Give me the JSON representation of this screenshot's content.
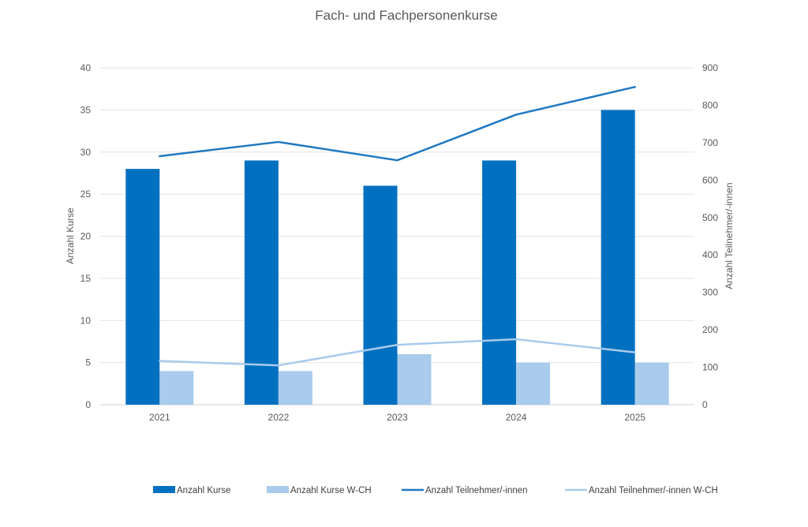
{
  "chart_data": {
    "type": "bar",
    "title": "Fach- und Fachpersonenkurse",
    "categories": [
      "2021",
      "2022",
      "2023",
      "2024",
      "2025"
    ],
    "y_left": {
      "label": "Anzahl Kurse",
      "min": 0,
      "max": 40,
      "ticks": [
        "0",
        "5",
        "10",
        "15",
        "20",
        "25",
        "30",
        "35",
        "40"
      ]
    },
    "y_right": {
      "label": "Anzahl Teilnehmer/-innen",
      "min": 0,
      "max": 900,
      "ticks": [
        "0",
        "100",
        "200",
        "300",
        "400",
        "500",
        "600",
        "700",
        "800",
        "900"
      ]
    },
    "grid": true,
    "legend_position": "bottom",
    "series": [
      {
        "name": "Anzahl Kurse",
        "kind": "bar",
        "axis": "left",
        "color": "#0070c0",
        "values": [
          28,
          29,
          26,
          29,
          35
        ]
      },
      {
        "name": "Anzahl Kurse W-CH",
        "kind": "bar",
        "axis": "left",
        "color": "#a9cbec",
        "values": [
          4,
          4,
          6,
          5,
          5
        ]
      },
      {
        "name": "Anzahl Teilnehmer/-innen",
        "kind": "line",
        "axis": "right",
        "color": "#1f78c1",
        "values": [
          664,
          702,
          653,
          775,
          849
        ]
      },
      {
        "name": "Anzahl Teilnehmer/-innen W-CH",
        "kind": "line",
        "axis": "right",
        "color": "#a9cbec",
        "values": [
          117,
          105,
          160,
          175,
          140
        ]
      }
    ]
  }
}
